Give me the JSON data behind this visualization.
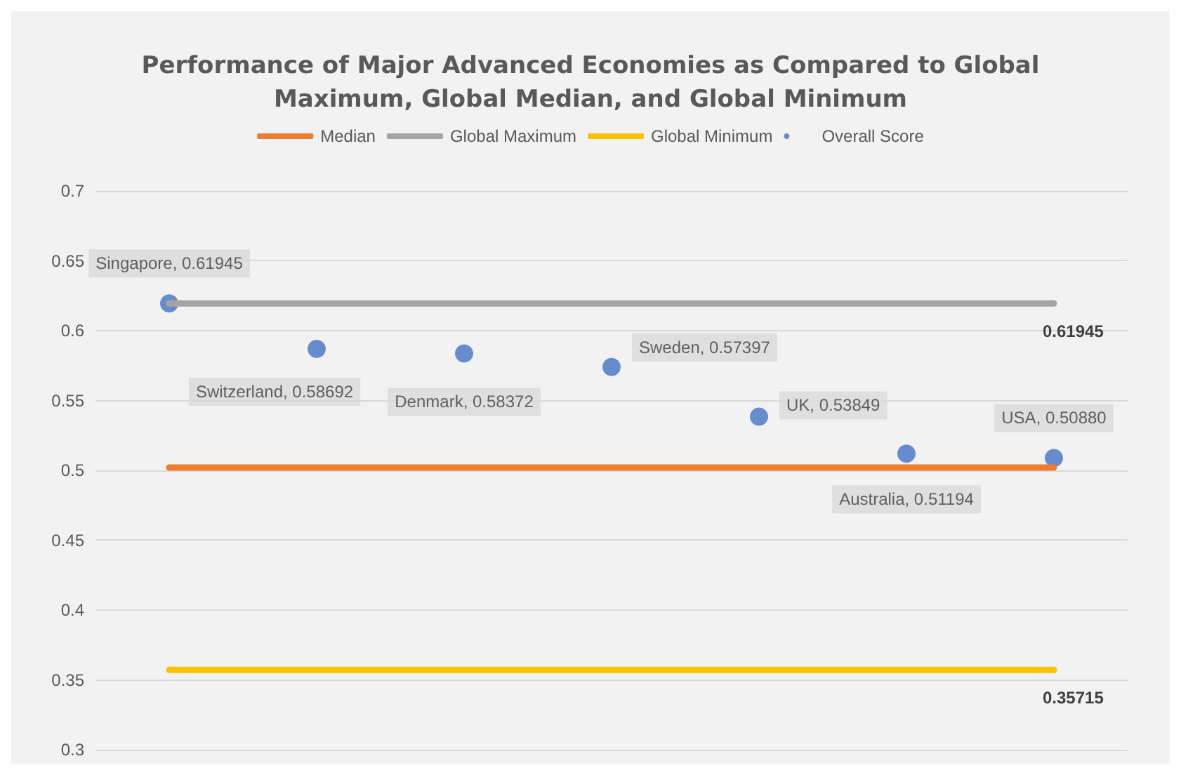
{
  "chart_data": {
    "type": "line",
    "title": "Performance of Major Advanced Economies as Compared to Global\nMaximum, Global Median, and Global Minimum",
    "categories": [
      null,
      null,
      null,
      null,
      null,
      null,
      null
    ],
    "series": [
      {
        "name": "Median",
        "color": "#ed7d31",
        "marker": "none",
        "values": [
          0.502,
          0.502,
          0.502,
          0.502,
          0.502,
          0.502,
          0.502
        ]
      },
      {
        "name": "Global Maximum",
        "color": "#a5a5a5",
        "marker": "none",
        "values": [
          0.61945,
          0.61945,
          0.61945,
          0.61945,
          0.61945,
          0.61945,
          0.61945
        ],
        "value_labels": [
          null,
          null,
          null,
          null,
          null,
          null,
          "0.61945"
        ]
      },
      {
        "name": "Global Minimum",
        "color": "#ffc000",
        "marker": "none",
        "values": [
          0.35715,
          0.35715,
          0.35715,
          0.35715,
          0.35715,
          0.35715,
          0.35715
        ],
        "value_labels": [
          null,
          null,
          null,
          null,
          null,
          null,
          "0.35715"
        ]
      },
      {
        "name": "Overall Score",
        "type": "scatter",
        "color": "#4472c4",
        "values": [
          0.61945,
          0.58692,
          0.58372,
          0.57397,
          0.53849,
          0.51194,
          0.5088
        ],
        "value_labels": [
          "Singapore, 0.61945",
          "Switzerland, 0.58692",
          "Denmark, 0.58372",
          "Sweden, 0.57397",
          "UK, 0.53849",
          "Australia, 0.51194",
          "USA, 0.50880"
        ]
      }
    ],
    "ylim": [
      0.3,
      0.7
    ],
    "yticks": [
      0.3,
      0.35,
      0.4,
      0.45,
      0.5,
      0.55,
      0.6,
      0.65,
      0.7
    ],
    "tick_labels": "y",
    "grid": "y",
    "legend": "top",
    "marker": "circle",
    "line_style": "solid"
  }
}
